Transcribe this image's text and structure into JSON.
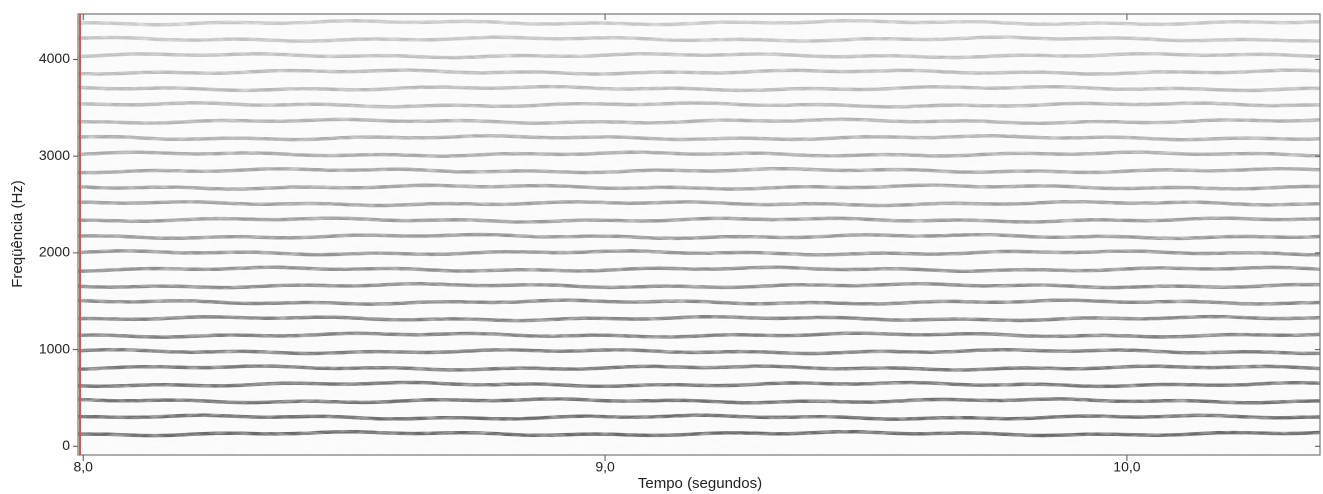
{
  "chart_data": {
    "type": "spectrogram",
    "xlabel": "Tempo (segundos)",
    "ylabel": "Freqüência (Hz)",
    "xlim": [
      7.99,
      10.37
    ],
    "ylim": [
      -90,
      4470
    ],
    "xticks": [
      {
        "value": 8.0,
        "label": "8,0"
      },
      {
        "value": 9.0,
        "label": "9,0"
      },
      {
        "value": 10.0,
        "label": "10,0"
      }
    ],
    "yticks": [
      0,
      1000,
      2000,
      3000,
      4000
    ],
    "values": [
      130,
      300,
      470,
      640,
      810,
      980,
      1150,
      1320,
      1490,
      1660,
      1830,
      2000,
      2170,
      2340,
      2510,
      2680,
      2850,
      3020,
      3190,
      3360,
      3530,
      3700,
      3870,
      4040,
      4210,
      4380
    ],
    "color": "#333333"
  }
}
